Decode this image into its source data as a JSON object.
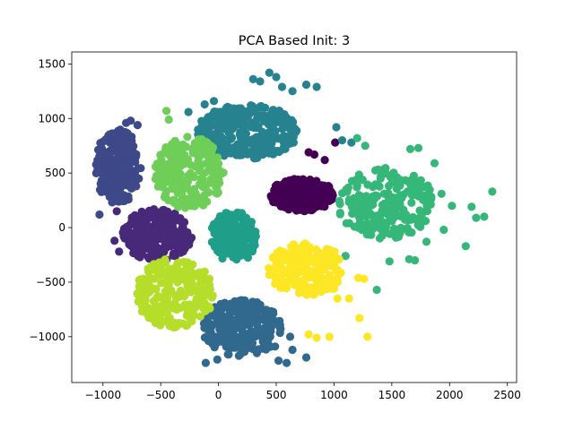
{
  "chart_data": {
    "type": "scatter",
    "title": "PCA Based Init: 3",
    "xlabel": "",
    "ylabel": "",
    "xlim": [
      -1270,
      2580
    ],
    "ylim": [
      -1420,
      1610
    ],
    "xticks": [
      -1000,
      -500,
      0,
      500,
      1000,
      1500,
      2000,
      2500
    ],
    "yticks": [
      -1000,
      -500,
      0,
      500,
      1000,
      1500
    ],
    "xtick_labels": [
      "−1000",
      "−500",
      "0",
      "500",
      "1000",
      "1500",
      "2000",
      "2500"
    ],
    "ytick_labels": [
      "−1000",
      "−500",
      "0",
      "500",
      "1000",
      "1500"
    ],
    "grid": false,
    "legend": "none",
    "marker": "circle",
    "clusters": [
      {
        "id": 0,
        "color": "#440154",
        "center": [
          730,
          300
        ],
        "spread": [
          290,
          150
        ],
        "count": 260,
        "extra_points": [
          [
            830,
            670
          ],
          [
            920,
            620
          ],
          [
            780,
            690
          ],
          [
            1010,
            780
          ]
        ]
      },
      {
        "id": 1,
        "color": "#482878",
        "center": [
          -530,
          -70
        ],
        "spread": [
          300,
          240
        ],
        "count": 220,
        "extra_points": [
          [
            -880,
            150
          ],
          [
            -900,
            -120
          ],
          [
            -860,
            -220
          ]
        ]
      },
      {
        "id": 2,
        "color": "#3e4989",
        "center": [
          -870,
          560
        ],
        "spread": [
          200,
          340
        ],
        "count": 230,
        "extra_points": [
          [
            -1030,
            120
          ],
          [
            -800,
            960
          ],
          [
            -760,
            980
          ],
          [
            -700,
            940
          ]
        ]
      },
      {
        "id": 3,
        "color": "#31688e",
        "center": [
          200,
          -920
        ],
        "spread": [
          340,
          260
        ],
        "count": 240,
        "extra_points": [
          [
            -110,
            -1240
          ],
          [
            -10,
            -1210
          ],
          [
            520,
            -1220
          ],
          [
            590,
            -1240
          ],
          [
            760,
            -1190
          ],
          [
            640,
            -1120
          ],
          [
            490,
            -1090
          ],
          [
            620,
            -1000
          ]
        ]
      },
      {
        "id": 4,
        "color": "#26828e",
        "center": [
          250,
          880
        ],
        "spread": [
          440,
          250
        ],
        "count": 300,
        "extra_points": [
          [
            440,
            1420
          ],
          [
            500,
            1380
          ],
          [
            550,
            1290
          ],
          [
            640,
            1250
          ],
          [
            760,
            1310
          ],
          [
            850,
            1290
          ],
          [
            360,
            1340
          ],
          [
            300,
            1360
          ],
          [
            1020,
            920
          ],
          [
            1070,
            800
          ],
          [
            1150,
            780
          ],
          [
            -260,
            1060
          ],
          [
            -120,
            1130
          ],
          [
            -40,
            1160
          ],
          [
            -60,
            1000
          ]
        ]
      },
      {
        "id": 5,
        "color": "#1f9e89",
        "center": [
          130,
          -90
        ],
        "spread": [
          200,
          240
        ],
        "count": 160,
        "extra_points": []
      },
      {
        "id": 6,
        "color": "#35b779",
        "center": [
          1450,
          220
        ],
        "spread": [
          420,
          330
        ],
        "count": 220,
        "extra_points": [
          [
            2370,
            330
          ],
          [
            2300,
            100
          ],
          [
            2230,
            90
          ],
          [
            2190,
            190
          ],
          [
            2020,
            200
          ],
          [
            1930,
            310
          ],
          [
            1870,
            590
          ],
          [
            1730,
            730
          ],
          [
            1660,
            720
          ],
          [
            1270,
            750
          ],
          [
            1200,
            820
          ],
          [
            2140,
            -170
          ],
          [
            1950,
            -20
          ],
          [
            1800,
            -130
          ],
          [
            1700,
            -300
          ],
          [
            1650,
            -290
          ],
          [
            1480,
            -310
          ],
          [
            1370,
            -570
          ],
          [
            1100,
            -260
          ]
        ]
      },
      {
        "id": 7,
        "color": "#6ece58",
        "center": [
          -250,
          500
        ],
        "spread": [
          300,
          340
        ],
        "count": 220,
        "extra_points": [
          [
            -450,
            1070
          ],
          [
            -430,
            990
          ]
        ]
      },
      {
        "id": 8,
        "color": "#b5de2b",
        "center": [
          -380,
          -600
        ],
        "spread": [
          340,
          320
        ],
        "count": 220,
        "extra_points": []
      },
      {
        "id": 9,
        "color": "#fde725",
        "center": [
          760,
          -380
        ],
        "spread": [
          330,
          240
        ],
        "count": 220,
        "extra_points": [
          [
            960,
            -1000
          ],
          [
            850,
            -1010
          ],
          [
            780,
            -980
          ],
          [
            1290,
            -1000
          ],
          [
            1220,
            -830
          ],
          [
            1130,
            -650
          ],
          [
            1030,
            -650
          ],
          [
            1000,
            -560
          ],
          [
            1260,
            -470
          ],
          [
            1210,
            -460
          ]
        ]
      }
    ]
  }
}
